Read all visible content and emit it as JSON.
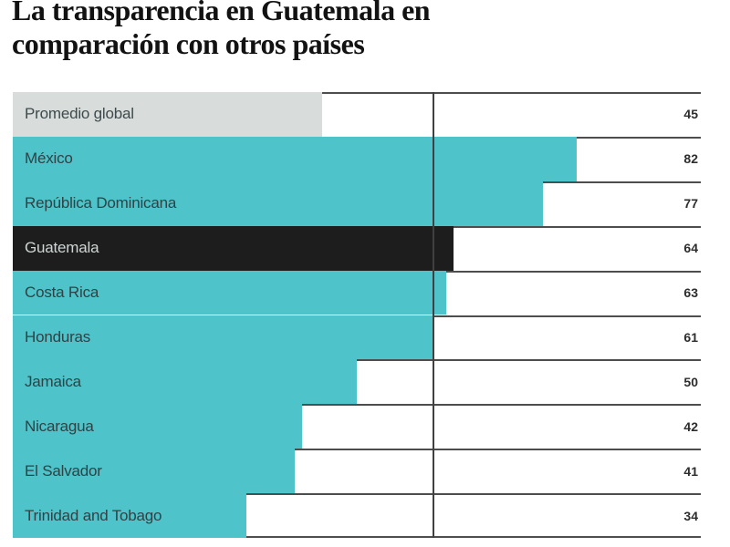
{
  "title": {
    "line1": "La transparencia en Guatemala en",
    "line2": "comparación con otros países"
  },
  "chart_data": {
    "type": "bar",
    "orientation": "horizontal",
    "title": "La transparencia en Guatemala en comparación con otros países",
    "categories": [
      "Promedio global",
      "México",
      "República Dominicana",
      "Guatemala",
      "Costa Rica",
      "Honduras",
      "Jamaica",
      "Nicaragua",
      "El Salvador",
      "Trinidad and Tobago"
    ],
    "values": [
      45,
      82,
      77,
      64,
      63,
      61,
      50,
      42,
      41,
      34
    ],
    "styles": [
      "global_average",
      "default",
      "default",
      "highlight",
      "default",
      "default",
      "default",
      "default",
      "default",
      "default"
    ],
    "xlim": [
      0,
      100
    ],
    "grid": "horizontal-row-separators",
    "value_labels": "right-aligned",
    "reference_line_x": 61,
    "legend": "none",
    "colors": {
      "bar_default": "#4ec3c9",
      "bar_global_average": "#d8dddc",
      "bar_highlight": "#1d1d1d",
      "label_on_teal": "#2f4347",
      "label_on_gray": "#3e4a4c",
      "label_on_highlight": "#cfd4d4",
      "value_text": "#2d2d2d",
      "grid_line": "#4d4d4d",
      "reference_line": "#404040",
      "title_text": "#121212"
    }
  }
}
